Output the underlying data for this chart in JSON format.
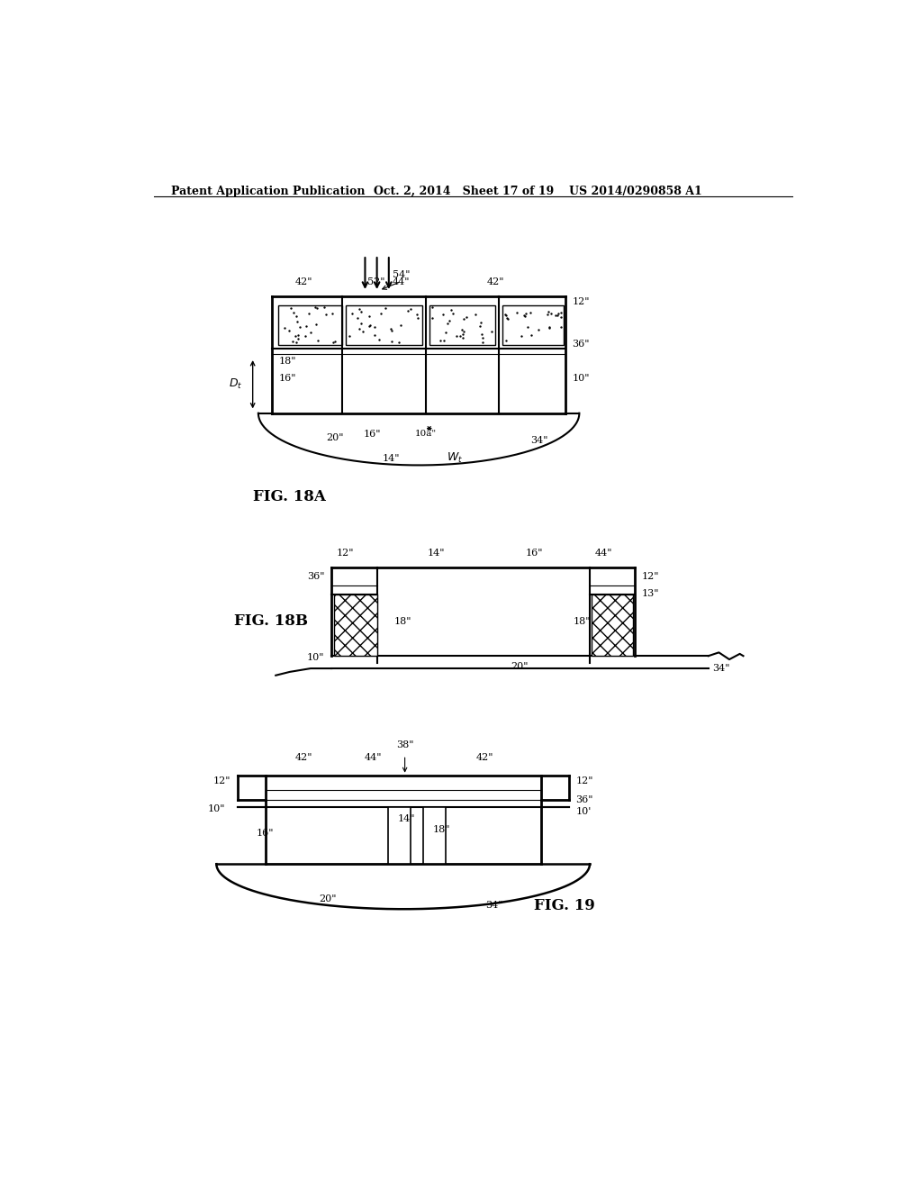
{
  "background_color": "#ffffff",
  "header_left": "Patent Application Publication",
  "header_mid": "Oct. 2, 2014   Sheet 17 of 19",
  "header_right": "US 2014/0290858 A1",
  "fig18a_label": "FIG. 18A",
  "fig18b_label": "FIG. 18B",
  "fig19_label": "FIG. 19"
}
